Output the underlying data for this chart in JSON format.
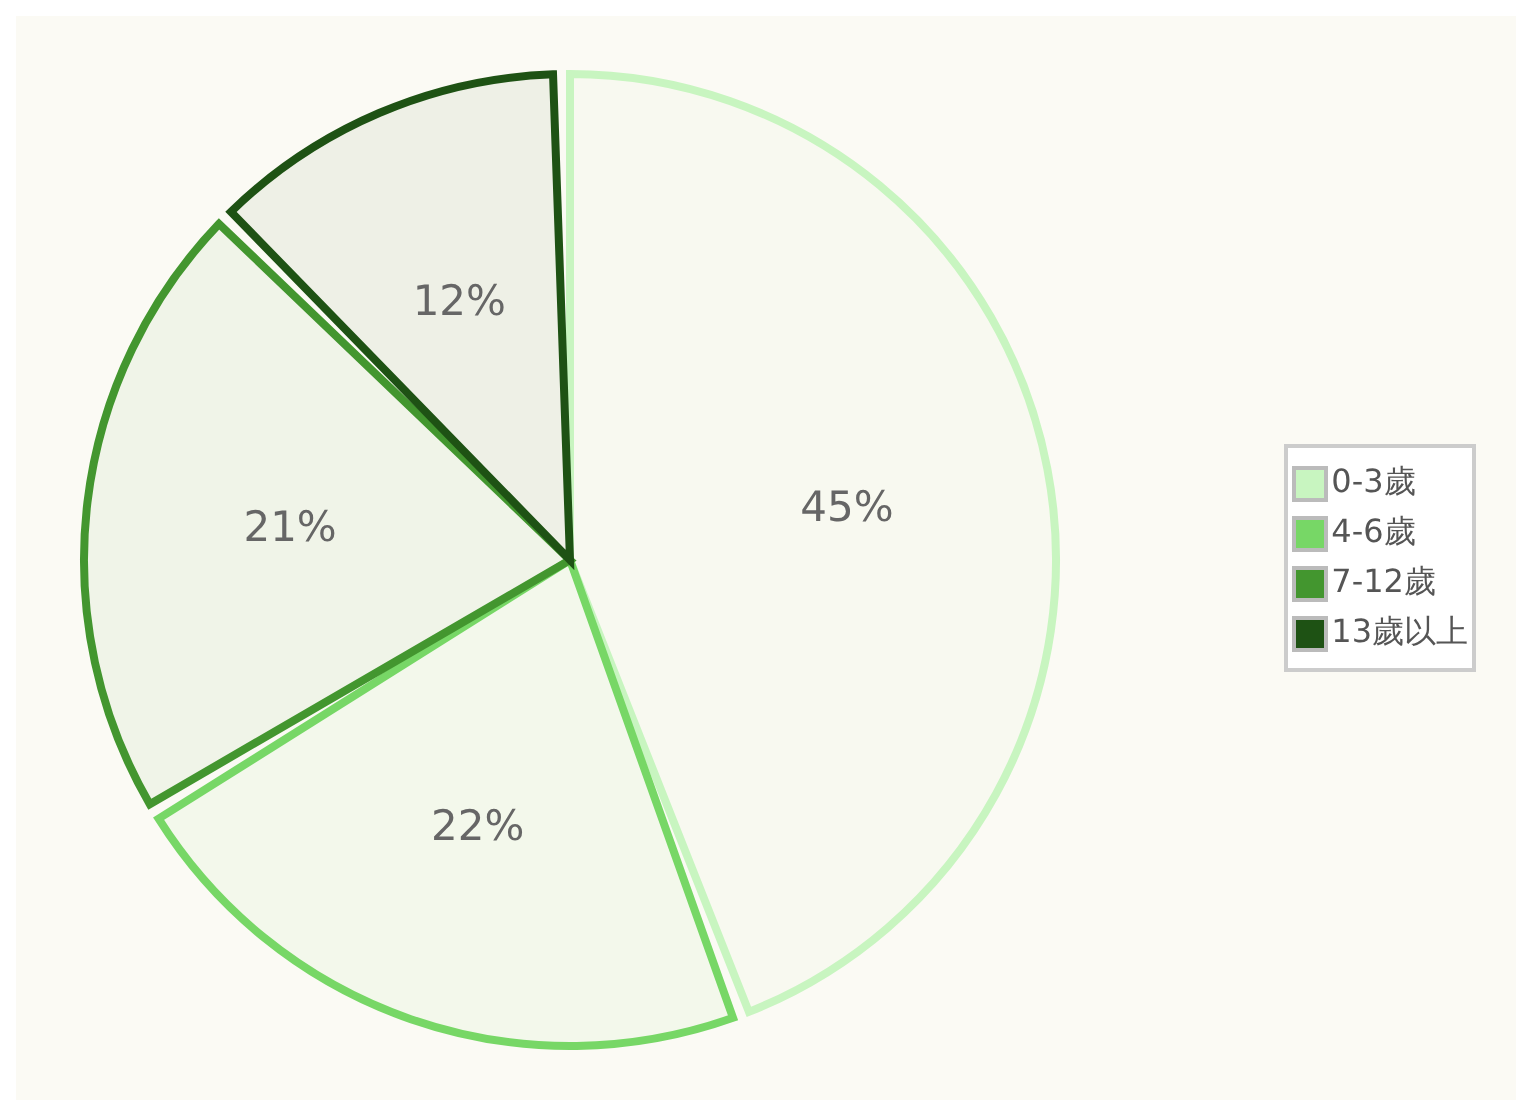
{
  "chart_data": {
    "type": "pie",
    "categories": [
      "0-3歲",
      "4-6歲",
      "7-12歲",
      "13歲以上"
    ],
    "values": [
      45,
      22,
      21,
      12
    ],
    "colors": [
      "#c8f5c0",
      "#77d766",
      "#43962f",
      "#1e5214"
    ],
    "value_labels": [
      "45%",
      "22%",
      "21%",
      "12%"
    ],
    "legend": "right"
  }
}
